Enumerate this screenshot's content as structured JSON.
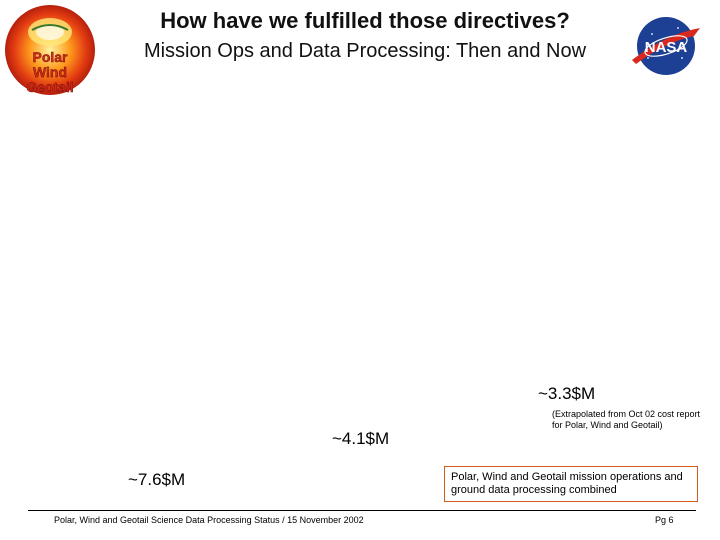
{
  "header": {
    "title": "How have we fulfilled those directives?",
    "subtitle": "Mission Ops and Data Processing: Then and Now",
    "logo_left": {
      "icon": "polar-wind-geotail-logo-icon",
      "lines": [
        "Polar",
        "Wind",
        "Geotail"
      ]
    },
    "logo_right": {
      "icon": "nasa-logo-icon",
      "text": "NASA"
    }
  },
  "values": {
    "value_1": "~7.6$M",
    "value_2": "~4.1$M",
    "value_3": "~3.3$M"
  },
  "notes": {
    "extrapolated": "(Extrapolated from Oct 02 cost report for Polar, Wind and Geotail)",
    "combined": "Polar, Wind and Geotail mission operations and ground data processing combined"
  },
  "footer": {
    "left": "Polar, Wind and Geotail Science Data Processing Status / 15 November 2002",
    "page": "Pg 6"
  },
  "colors": {
    "accent_border": "#d05a1e",
    "logo_red": "#d9281e",
    "nasa_blue": "#1d3f94"
  }
}
